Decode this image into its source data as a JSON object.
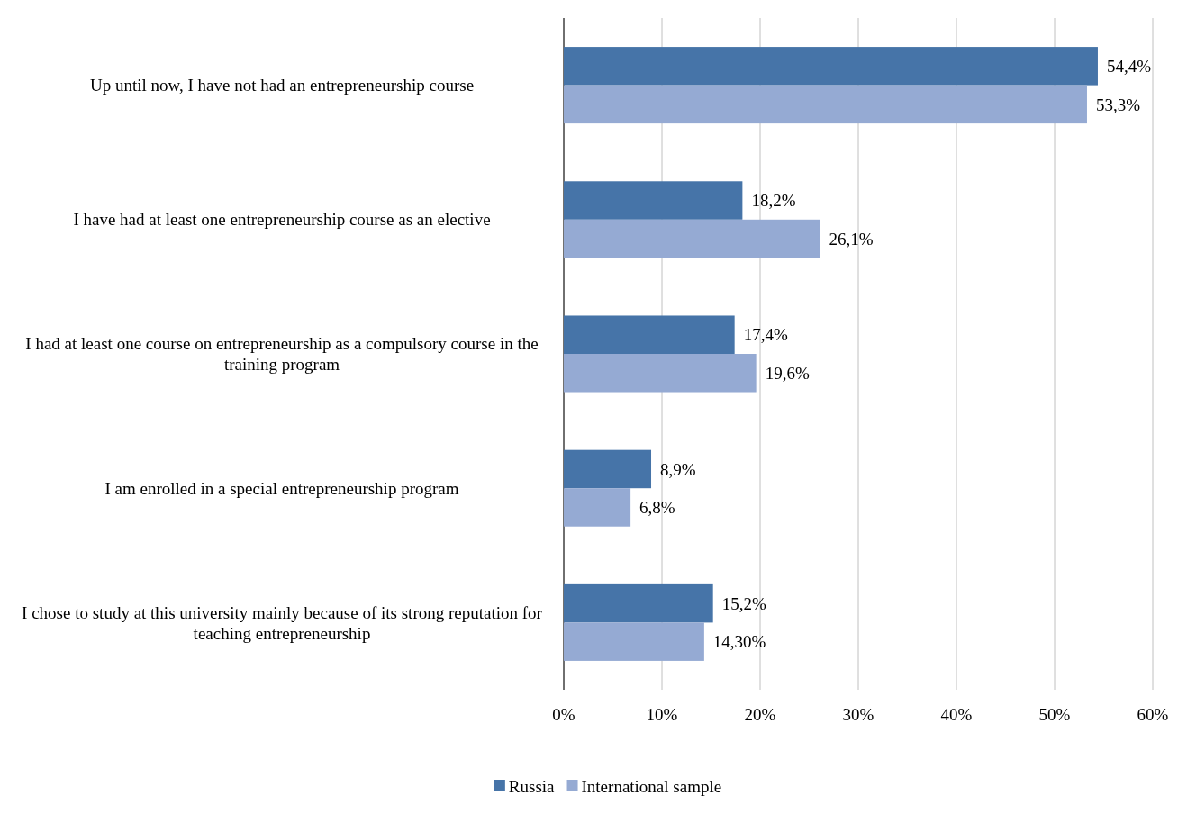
{
  "chart_data": {
    "type": "bar",
    "orientation": "horizontal",
    "categories": [
      "Up until now, I have not had an entrepreneurship course",
      "I have had at least one entrepreneurship course as an elective",
      "I had at least one course on entrepreneurship as a compulsory course in the training program",
      "I am enrolled in a special entrepreneurship program",
      "I chose to study at this university mainly because of its strong reputation for teaching entrepreneurship"
    ],
    "series": [
      {
        "name": "Russia",
        "color": "#4674a8",
        "values": [
          54.4,
          18.2,
          17.4,
          8.9,
          15.2
        ],
        "value_labels": [
          "54,4%",
          "18,2%",
          "17,4%",
          "8,9%",
          "15,2%"
        ]
      },
      {
        "name": "International sample",
        "color": "#95aad3",
        "values": [
          53.3,
          26.1,
          19.6,
          6.8,
          14.3
        ],
        "value_labels": [
          "53,3%",
          "26,1%",
          "19,6%",
          "6,8%",
          "14,30%"
        ]
      }
    ],
    "xlim": [
      0,
      60
    ],
    "xticks": [
      {
        "value": 0,
        "label": "0%"
      },
      {
        "value": 10,
        "label": "10%"
      },
      {
        "value": 20,
        "label": "20%"
      },
      {
        "value": 30,
        "label": "30%"
      },
      {
        "value": 40,
        "label": "40%"
      },
      {
        "value": 50,
        "label": "50%"
      },
      {
        "value": 60,
        "label": "60%"
      }
    ],
    "grid": "x",
    "legend": "bottom"
  }
}
